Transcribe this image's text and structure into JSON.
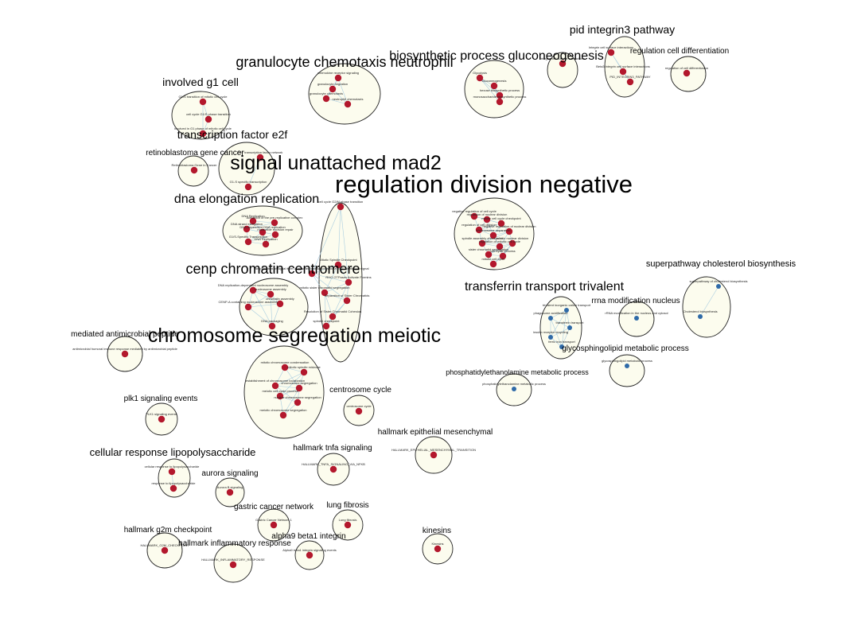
{
  "colors": {
    "background": "#ffffff",
    "cluster_fill": "#fcfcee",
    "cluster_stroke": "#222222",
    "edge": "#a9cde0",
    "node_red": "#b3182d",
    "node_blue": "#2f6aa8"
  },
  "clusters": [
    {
      "id": "pid-integrin3",
      "label": "pid integrin3 pathway",
      "nodes": [
        {
          "label": "Integrin cell surface interactions",
          "color": "red"
        },
        {
          "label": "Beta3 integrin cell surface interactions",
          "color": "red"
        },
        {
          "label": "PID_INTEGRIN3_PATHWAY",
          "color": "red"
        }
      ]
    },
    {
      "id": "integrin-cell-surface",
      "label": "",
      "nodes": [
        {
          "label": "Integrin cell surface interactions",
          "color": "red"
        }
      ]
    },
    {
      "id": "regulation-cell-diff",
      "label": "regulation cell differentiation",
      "nodes": [
        {
          "label": "regulation of cell differentiation",
          "color": "red"
        }
      ]
    },
    {
      "id": "granulocyte",
      "label": "granulocyte chemotaxis neutrophil",
      "nodes": [
        {
          "label": "chemokine receptor signaling",
          "color": "red"
        },
        {
          "label": "granulocyte migration",
          "color": "red"
        },
        {
          "label": "granulocyte chemotaxis",
          "color": "red"
        },
        {
          "label": "neutrophil chemotaxis",
          "color": "red"
        }
      ]
    },
    {
      "id": "biosynthetic",
      "label": "biosynthetic process gluconeogenesis",
      "nodes": [
        {
          "label": "Glycolysis",
          "color": "red"
        },
        {
          "label": "Gluconeogenesis",
          "color": "red"
        },
        {
          "label": "hexose biosynthetic process",
          "color": "red"
        },
        {
          "label": "monosaccharide biosynthetic process",
          "color": "red"
        }
      ]
    },
    {
      "id": "involved-g1",
      "label": "involved g1 cell",
      "nodes": [
        {
          "label": "G1/S transition of mitotic cell cycle",
          "color": "red"
        },
        {
          "label": "cell cycle G1/S phase transition",
          "color": "red"
        },
        {
          "label": "involved in G1 phase of mitotic cell cycle",
          "color": "red"
        }
      ]
    },
    {
      "id": "retinoblastoma",
      "label": "retinoblastoma gene cancer",
      "nodes": [
        {
          "label": "Retinoblastoma Gene in Cancer",
          "color": "red"
        }
      ]
    },
    {
      "id": "transcription-e2f",
      "label": "transcription factor e2f",
      "nodes": [
        {
          "label": "E2F transcription factor network",
          "color": "red"
        },
        {
          "label": "G1-S specific transcription",
          "color": "red"
        }
      ]
    },
    {
      "id": "signal-mad2",
      "label": "signal unattached mad2",
      "nodes": [
        {
          "label": "cell cycle G2/M phase transition",
          "color": "red"
        },
        {
          "label": "Mitotic Spindle Checkpoint",
          "color": "red"
        },
        {
          "label": "Amplification of signal from unattached kinetochores via a MAD2 inhibitory signal",
          "color": "red"
        },
        {
          "label": "RHO GTPases Activate Formins",
          "color": "red"
        },
        {
          "label": "mitotic sister chromatid segregation",
          "color": "red"
        },
        {
          "label": "Separation of Sister Chromatids",
          "color": "red"
        },
        {
          "label": "Resolution of Sister Chromatid Cohesion",
          "color": "red"
        },
        {
          "label": "spindle checkpoint",
          "color": "red"
        }
      ]
    },
    {
      "id": "dna-elongation",
      "label": "dna elongation replication",
      "nodes": [
        {
          "label": "DNA Replication",
          "color": "red"
        },
        {
          "label": "Activation of the pre-replicative complex",
          "color": "red"
        },
        {
          "label": "DNA strand elongation",
          "color": "red"
        },
        {
          "label": "DNA-dependent DNA replication",
          "color": "red"
        },
        {
          "label": "nucleotide excision repair",
          "color": "red"
        },
        {
          "label": "G1/S-Specific Transcription",
          "color": "red"
        },
        {
          "label": "DNA Replication",
          "color": "red"
        }
      ]
    },
    {
      "id": "regulation-division",
      "label": "regulation division negative",
      "nodes": [
        {
          "label": "negative regulation of cell cycle",
          "color": "red"
        },
        {
          "label": "regulation of nuclear division",
          "color": "red"
        },
        {
          "label": "mitotic cell cycle checkpoint",
          "color": "red"
        },
        {
          "label": "regulation of cell division",
          "color": "red"
        },
        {
          "label": "chromosome separation",
          "color": "red"
        },
        {
          "label": "negative regulation of nuclear division",
          "color": "red"
        },
        {
          "label": "spindle assembly checkpoint",
          "color": "red"
        },
        {
          "label": "regulation of mitotic cell cycle",
          "color": "red"
        },
        {
          "label": "mitotic nuclear division",
          "color": "red"
        },
        {
          "label": "sister chromatid segregation",
          "color": "red"
        },
        {
          "label": "cell cycle process",
          "color": "red"
        },
        {
          "label": "mitotic cell cycle",
          "color": "red"
        }
      ]
    },
    {
      "id": "cenp-chromatin",
      "label": "cenp chromatin centromere",
      "nodes": [
        {
          "label": "DNA replication-dependent nucleosome assembly",
          "color": "red"
        },
        {
          "label": "nucleosome assembly",
          "color": "red"
        },
        {
          "label": "chromatin assembly",
          "color": "red"
        },
        {
          "label": "CENP-A containing nucleosome assembly",
          "color": "red"
        },
        {
          "label": "DNA packaging",
          "color": "red"
        }
      ]
    },
    {
      "id": "transferrin",
      "label": "transferrin transport trivalent",
      "nodes": [
        {
          "label": "trivalent inorganic cation transport",
          "color": "blue"
        },
        {
          "label": "phagosome acidification",
          "color": "blue"
        },
        {
          "label": "transferrin transport",
          "color": "blue"
        },
        {
          "label": "insulin receptor recycling",
          "color": "blue"
        },
        {
          "label": "ferric iron transport",
          "color": "blue"
        }
      ]
    },
    {
      "id": "superpathway-cholesterol",
      "label": "superpathway cholesterol biosynthesis",
      "nodes": [
        {
          "label": "superpathway of cholesterol biosynthesis",
          "color": "blue"
        },
        {
          "label": "Cholesterol biosynthesis",
          "color": "blue"
        }
      ]
    },
    {
      "id": "rrna-modification",
      "label": "rrna modification nucleus",
      "nodes": [
        {
          "label": "rRNA modification in the nucleus and cytosol",
          "color": "blue"
        }
      ]
    },
    {
      "id": "glycosphingolipid",
      "label": "glycosphingolipid metabolic process",
      "nodes": [
        {
          "label": "glycosphingolipid metabolic process",
          "color": "blue"
        }
      ]
    },
    {
      "id": "phosphatidylethanolamine",
      "label": "phosphatidylethanolamine metabolic process",
      "nodes": [
        {
          "label": "phosphatidylethanolamine metabolic process",
          "color": "blue"
        }
      ]
    },
    {
      "id": "mediated-antimicrobial",
      "label": "mediated antimicrobial peptide",
      "nodes": [
        {
          "label": "antimicrobial humoral immune response mediated by antimicrobial peptide",
          "color": "red"
        }
      ]
    },
    {
      "id": "chromosome-segregation",
      "label": "chromosome segregation meiotic",
      "nodes": [
        {
          "label": "mitotic chromosome condensation",
          "color": "red"
        },
        {
          "label": "mitotic spindle midzone",
          "color": "red"
        },
        {
          "label": "establishment of chromosome localization",
          "color": "red"
        },
        {
          "label": "chromosome segregation",
          "color": "red"
        },
        {
          "label": "meiotic cell cycle process",
          "color": "red"
        },
        {
          "label": "nuclear chromosome segregation",
          "color": "red"
        },
        {
          "label": "meiotic chromosome segregation",
          "color": "red"
        }
      ]
    },
    {
      "id": "centrosome-cycle",
      "label": "centrosome cycle",
      "nodes": [
        {
          "label": "centrosome cycle",
          "color": "red"
        }
      ]
    },
    {
      "id": "plk1",
      "label": "plk1 signaling events",
      "nodes": [
        {
          "label": "PLK1 signaling events",
          "color": "red"
        }
      ]
    },
    {
      "id": "hallmark-emt",
      "label": "hallmark epithelial mesenchymal",
      "nodes": [
        {
          "label": "HALLMARK_EPITHELIAL_MESENCHYMAL_TRANSITION",
          "color": "red"
        }
      ]
    },
    {
      "id": "hallmark-tnfa",
      "label": "hallmark tnfa signaling",
      "nodes": [
        {
          "label": "HALLMARK_TNFA_SIGNALING_VIA_NFKB",
          "color": "red"
        }
      ]
    },
    {
      "id": "cellular-lps",
      "label": "cellular response lipopolysaccharide",
      "nodes": [
        {
          "label": "cellular response to lipopolysaccharide",
          "color": "red"
        },
        {
          "label": "response to lipopolysaccharide",
          "color": "red"
        }
      ]
    },
    {
      "id": "aurora",
      "label": "aurora signaling",
      "nodes": [
        {
          "label": "Aurora B signaling",
          "color": "red"
        }
      ]
    },
    {
      "id": "gastric-cancer",
      "label": "gastric cancer network",
      "nodes": [
        {
          "label": "Gastric Cancer Network 1",
          "color": "red"
        }
      ]
    },
    {
      "id": "lung-fibrosis",
      "label": "lung fibrosis",
      "nodes": [
        {
          "label": "Lung fibrosis",
          "color": "red"
        }
      ]
    },
    {
      "id": "kinesins",
      "label": "kinesins",
      "nodes": [
        {
          "label": "Kinesins",
          "color": "red"
        }
      ]
    },
    {
      "id": "hallmark-g2m",
      "label": "hallmark g2m checkpoint",
      "nodes": [
        {
          "label": "HALLMARK_G2M_CHECKPOINT",
          "color": "red"
        }
      ]
    },
    {
      "id": "hallmark-inflammatory",
      "label": "hallmark inflammatory response",
      "nodes": [
        {
          "label": "HALLMARK_INFLAMMATORY_RESPONSE",
          "color": "red"
        }
      ]
    },
    {
      "id": "alpha9-beta1",
      "label": "alpha9 beta1 integrin",
      "nodes": [
        {
          "label": "Alpha9 beta1 integrin signaling events",
          "color": "red"
        }
      ]
    }
  ]
}
